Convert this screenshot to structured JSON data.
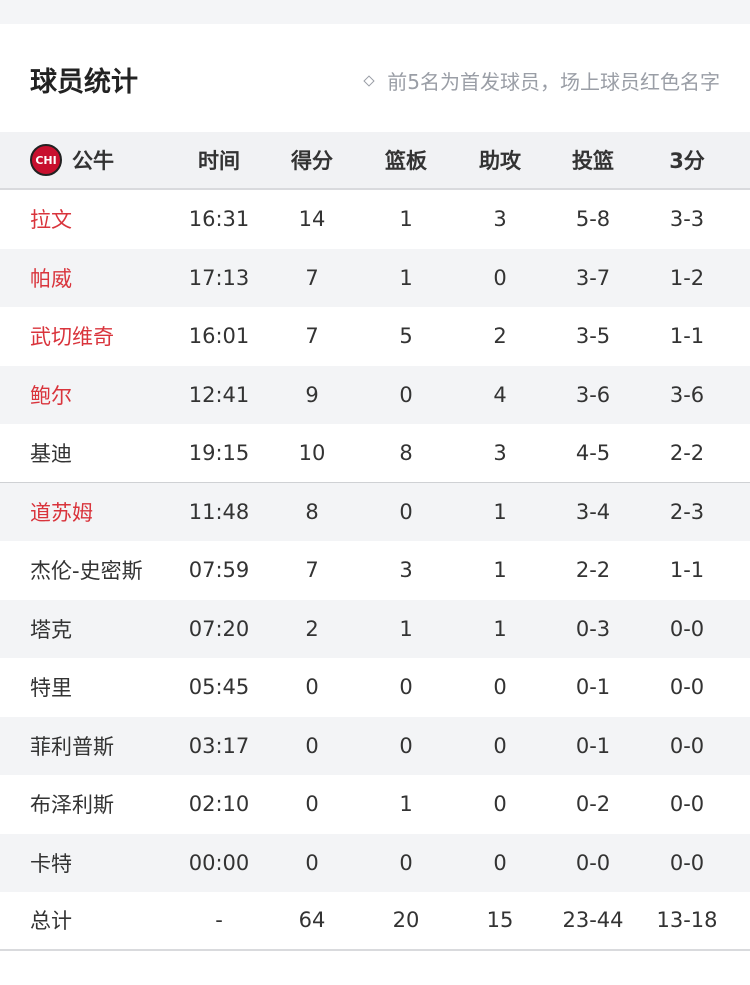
{
  "title": "球员统计",
  "note": "前5名为首发球员，场上球员红色名字",
  "team": {
    "logo_text": "CHI",
    "name": "公牛"
  },
  "columns": [
    "时间",
    "得分",
    "篮板",
    "助攻",
    "投篮",
    "3分"
  ],
  "colors": {
    "on_court": "#d9343c",
    "text": "#333333"
  },
  "players": [
    {
      "name": "拉文",
      "on_court": true,
      "stats": [
        "16:31",
        "14",
        "1",
        "3",
        "5-8",
        "3-3"
      ]
    },
    {
      "name": "帕威",
      "on_court": true,
      "stats": [
        "17:13",
        "7",
        "1",
        "0",
        "3-7",
        "1-2"
      ]
    },
    {
      "name": "武切维奇",
      "on_court": true,
      "stats": [
        "16:01",
        "7",
        "5",
        "2",
        "3-5",
        "1-1"
      ]
    },
    {
      "name": "鲍尔",
      "on_court": true,
      "stats": [
        "12:41",
        "9",
        "0",
        "4",
        "3-6",
        "3-6"
      ]
    },
    {
      "name": "基迪",
      "on_court": false,
      "stats": [
        "19:15",
        "10",
        "8",
        "3",
        "4-5",
        "2-2"
      ]
    },
    {
      "name": "道苏姆",
      "on_court": true,
      "stats": [
        "11:48",
        "8",
        "0",
        "1",
        "3-4",
        "2-3"
      ]
    },
    {
      "name": "杰伦-史密斯",
      "on_court": false,
      "stats": [
        "07:59",
        "7",
        "3",
        "1",
        "2-2",
        "1-1"
      ]
    },
    {
      "name": "塔克",
      "on_court": false,
      "stats": [
        "07:20",
        "2",
        "1",
        "1",
        "0-3",
        "0-0"
      ]
    },
    {
      "name": "特里",
      "on_court": false,
      "stats": [
        "05:45",
        "0",
        "0",
        "0",
        "0-1",
        "0-0"
      ]
    },
    {
      "name": "菲利普斯",
      "on_court": false,
      "stats": [
        "03:17",
        "0",
        "0",
        "0",
        "0-1",
        "0-0"
      ]
    },
    {
      "name": "布泽利斯",
      "on_court": false,
      "stats": [
        "02:10",
        "0",
        "1",
        "0",
        "0-2",
        "0-0"
      ]
    },
    {
      "name": "卡特",
      "on_court": false,
      "stats": [
        "00:00",
        "0",
        "0",
        "0",
        "0-0",
        "0-0"
      ]
    }
  ],
  "total": {
    "name": "总计",
    "stats": [
      "-",
      "64",
      "20",
      "15",
      "23-44",
      "13-18"
    ]
  }
}
